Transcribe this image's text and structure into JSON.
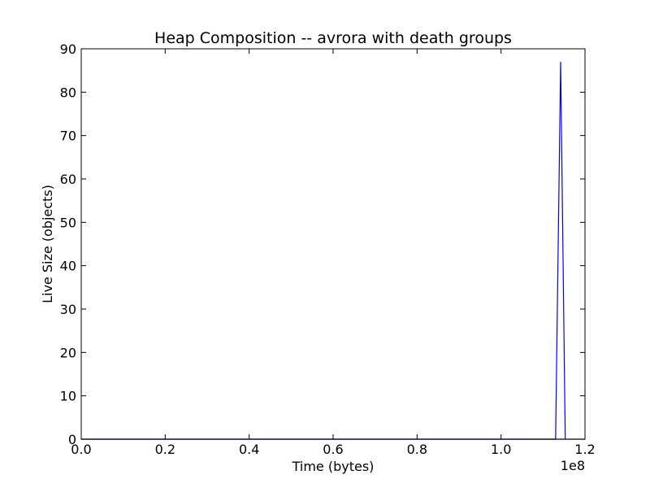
{
  "chart_data": {
    "type": "line",
    "title": "Heap Composition -- avrora with death groups",
    "xlabel": "Time (bytes)",
    "ylabel": "Live Size (objects)",
    "x_offset_label": "1e8",
    "xlim": [
      0,
      1.2
    ],
    "ylim": [
      0,
      90
    ],
    "x_ticks": [
      0.0,
      0.2,
      0.4,
      0.6,
      0.8,
      1.0,
      1.2
    ],
    "x_tick_labels": [
      "0.0",
      "0.2",
      "0.4",
      "0.6",
      "0.8",
      "1.0",
      "1.2"
    ],
    "y_ticks": [
      0,
      10,
      20,
      30,
      40,
      50,
      60,
      70,
      80,
      90
    ],
    "y_tick_labels": [
      "0",
      "10",
      "20",
      "30",
      "40",
      "50",
      "60",
      "70",
      "80",
      "90"
    ],
    "grid": false,
    "series": [
      {
        "color": "#0000ff",
        "x": [
          0.0,
          1.13,
          1.142,
          1.153
        ],
        "y": [
          0,
          0,
          87,
          0
        ]
      },
      {
        "color": "#000000",
        "x": [
          0.0,
          1.2
        ],
        "y": [
          0,
          0
        ]
      }
    ]
  }
}
